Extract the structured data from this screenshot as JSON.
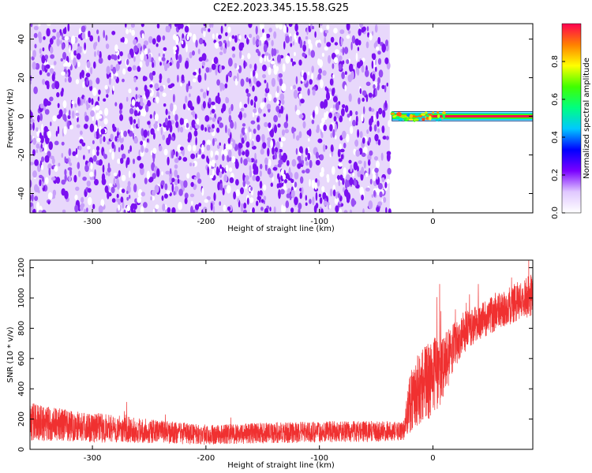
{
  "figure": {
    "title": "C2E2.2023.345.15.58.G25"
  },
  "chart_data": [
    {
      "type": "heatmap",
      "title": "",
      "xlabel": "Height of straight line (km)",
      "ylabel": "Frequency (Hz)",
      "xlim": [
        -355,
        88
      ],
      "ylim": [
        -50,
        48
      ],
      "xticks": [
        "-300",
        "-200",
        "-100",
        "0"
      ],
      "xtick_values": [
        -300,
        -200,
        -100,
        0
      ],
      "yticks": [
        "-40",
        "-20",
        "0",
        "20",
        "40"
      ],
      "ytick_values": [
        -40,
        -20,
        0,
        20,
        40
      ],
      "noise_region": {
        "x_range": [
          -355,
          -38
        ],
        "y_range": [
          -50,
          48
        ],
        "amplitude_range": [
          0.0,
          0.25
        ],
        "color": "#7a10f0"
      },
      "signal_band": {
        "x_range": [
          -38,
          88
        ],
        "frequency_hz": 0,
        "points": [
          {
            "x": -36,
            "amplitude": 0.55
          },
          {
            "x": -30,
            "amplitude": 0.75
          },
          {
            "x": -20,
            "amplitude": 0.85
          },
          {
            "x": -10,
            "amplitude": 0.9
          },
          {
            "x": 0,
            "amplitude": 0.95
          },
          {
            "x": 88,
            "amplitude": 1.0
          }
        ]
      },
      "colorbar": {
        "label": "Normalized spectral amplitude",
        "range": [
          0,
          1
        ],
        "ticks": [
          "0.0",
          "0.2",
          "0.4",
          "0.6",
          "0.8"
        ],
        "tick_values": [
          0.0,
          0.2,
          0.4,
          0.6,
          0.8
        ],
        "colors": [
          "#ffffff",
          "#e0c8ff",
          "#7a00ff",
          "#0000ff",
          "#00c8ff",
          "#00ff80",
          "#40ff00",
          "#ffff00",
          "#ff8000",
          "#ff0050"
        ]
      }
    },
    {
      "type": "line",
      "title": "",
      "xlabel": "Height of straight line (km)",
      "ylabel": "SNR (10 * v/v)",
      "xlim": [
        -355,
        88
      ],
      "ylim": [
        0,
        1250
      ],
      "xticks": [
        "-300",
        "-200",
        "-100",
        "0"
      ],
      "xtick_values": [
        -300,
        -200,
        -100,
        0
      ],
      "yticks": [
        "0",
        "200",
        "400",
        "600",
        "800",
        "1000",
        "1200"
      ],
      "ytick_values": [
        0,
        200,
        400,
        600,
        800,
        1000,
        1200
      ],
      "color": "#f03030",
      "series": [
        {
          "x": [
            -355,
            -330,
            -300,
            -250,
            -200,
            -150,
            -100,
            -50,
            -26,
            -20,
            -10,
            0,
            10,
            20,
            30,
            40,
            50,
            60,
            70,
            88
          ],
          "y": [
            185,
            165,
            145,
            120,
            95,
            108,
            115,
            120,
            120,
            330,
            420,
            470,
            560,
            700,
            790,
            840,
            880,
            920,
            960,
            1020
          ],
          "noise_amplitude": [
            130,
            110,
            100,
            80,
            65,
            70,
            70,
            70,
            60,
            220,
            240,
            260,
            220,
            150,
            130,
            120,
            120,
            120,
            130,
            140
          ]
        }
      ]
    }
  ]
}
